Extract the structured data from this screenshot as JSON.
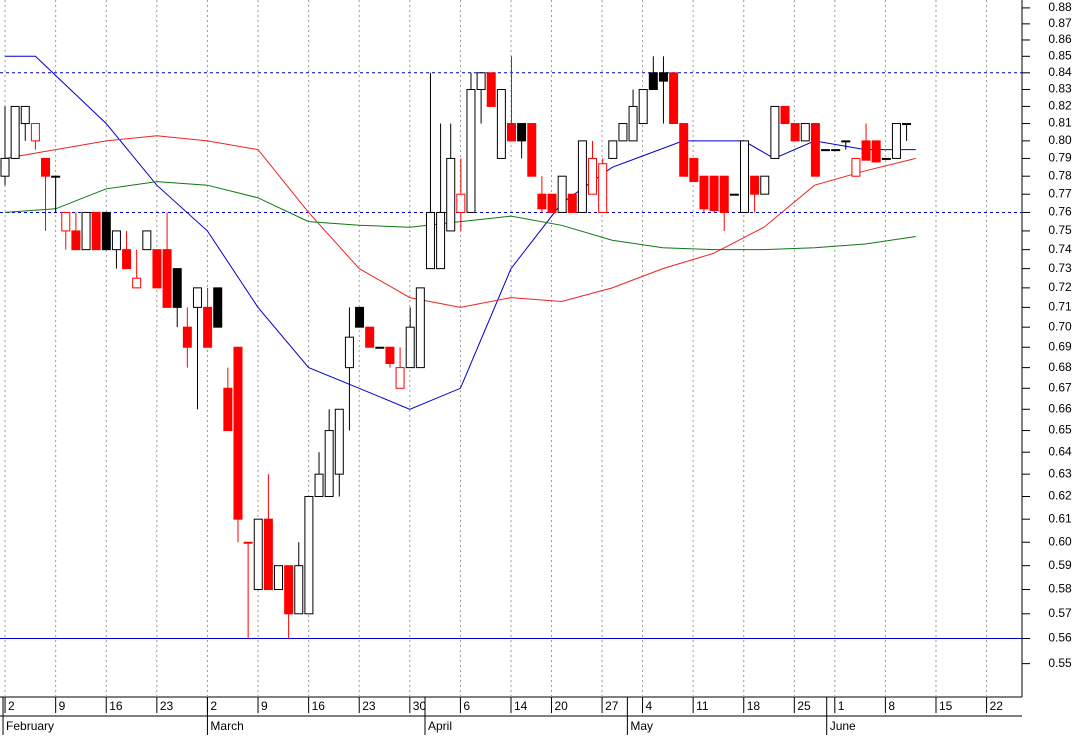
{
  "chart_data": {
    "type": "candlestick",
    "log": true,
    "ylim": [
      0.537,
      0.885
    ],
    "xlim": [
      -0.5,
      100.5
    ],
    "yticks": [
      0.55,
      0.56,
      0.57,
      0.58,
      0.59,
      {
        "value": 0.6,
        "label": "0.60"
      },
      0.61,
      0.62,
      0.63,
      0.64,
      0.65,
      0.66,
      0.67,
      0.68,
      0.69,
      {
        "value": 0.7,
        "label": "0.70"
      },
      0.71,
      0.72,
      0.73,
      0.74,
      0.75,
      0.76,
      0.77,
      0.78,
      0.79,
      {
        "value": 0.8,
        "label": "0.80"
      },
      0.81,
      0.82,
      0.83,
      0.84,
      0.85,
      0.86,
      0.87,
      0.88
    ],
    "xticks": [
      {
        "value": 0,
        "label": "2"
      },
      {
        "value": 5,
        "label": "9"
      },
      {
        "value": 10,
        "label": "16"
      },
      {
        "value": 15,
        "label": "23"
      },
      {
        "value": 20,
        "label": "2"
      },
      {
        "value": 25,
        "label": "9"
      },
      {
        "value": 30,
        "label": "16"
      },
      {
        "value": 35,
        "label": "23"
      },
      {
        "value": 40,
        "label": "30"
      },
      {
        "value": 45,
        "label": "6"
      },
      {
        "value": 50,
        "label": "14"
      },
      {
        "value": 54,
        "label": "20"
      },
      {
        "value": 59,
        "label": "27"
      },
      {
        "value": 63,
        "label": "4"
      },
      {
        "value": 68,
        "label": "11"
      },
      {
        "value": 73,
        "label": "18"
      },
      {
        "value": 78,
        "label": "25"
      },
      {
        "value": 82,
        "label": "1"
      },
      {
        "value": 87,
        "label": "8"
      },
      {
        "value": 92,
        "label": "15"
      },
      {
        "value": 97,
        "label": "22"
      }
    ],
    "xmonths": [
      {
        "value": -0.2,
        "label": "February"
      },
      {
        "value": 20,
        "label": "March"
      },
      {
        "value": 41.5,
        "label": "April"
      },
      {
        "value": 61.5,
        "label": "May"
      },
      {
        "value": 81.2,
        "label": "June"
      }
    ],
    "grid": true,
    "up_color": "#000000",
    "down_color": "#ff0000",
    "open": [
      0.78,
      0.79,
      0.81,
      0.8,
      0.79,
      0.78,
      0.75,
      0.75,
      0.74,
      0.76,
      0.76,
      0.74,
      0.74,
      0.72,
      0.74,
      0.74,
      0.74,
      0.73,
      0.7,
      0.71,
      0.71,
      0.72,
      0.67,
      0.69,
      0.6,
      0.58,
      0.61,
      0.58,
      0.59,
      0.57,
      0.57,
      0.62,
      0.62,
      0.63,
      0.68,
      0.71,
      0.7,
      0.69,
      0.69,
      0.67,
      0.68,
      0.68,
      0.73,
      0.73,
      0.75,
      0.76,
      0.76,
      0.83,
      0.84,
      0.79,
      0.81,
      0.81,
      0.81,
      0.77,
      0.77,
      0.76,
      0.77,
      0.76,
      0.77,
      0.76,
      0.79,
      0.8,
      0.8,
      0.81,
      0.84,
      0.84,
      0.84,
      0.81,
      0.79,
      0.78,
      0.78,
      0.78,
      0.77,
      0.76,
      0.78,
      0.77,
      0.79,
      0.82,
      0.81,
      0.8,
      0.81,
      0.795,
      0.795,
      0.8,
      0.78,
      0.8,
      0.8,
      0.79,
      0.79,
      0.81
    ],
    "high": [
      0.82,
      0.82,
      0.82,
      0.81,
      0.79,
      0.78,
      0.76,
      0.76,
      0.76,
      0.76,
      0.76,
      0.75,
      0.75,
      0.74,
      0.75,
      0.74,
      0.76,
      0.73,
      0.71,
      0.72,
      0.72,
      0.72,
      0.68,
      0.69,
      0.6,
      0.61,
      0.63,
      0.59,
      0.59,
      0.6,
      0.62,
      0.64,
      0.66,
      0.66,
      0.71,
      0.71,
      0.7,
      0.69,
      0.69,
      0.69,
      0.71,
      0.72,
      0.84,
      0.81,
      0.81,
      0.79,
      0.84,
      0.84,
      0.84,
      0.83,
      0.85,
      0.81,
      0.81,
      0.78,
      0.77,
      0.78,
      0.77,
      0.8,
      0.8,
      0.79,
      0.8,
      0.81,
      0.83,
      0.83,
      0.85,
      0.85,
      0.84,
      0.81,
      0.79,
      0.78,
      0.78,
      0.78,
      0.77,
      0.8,
      0.78,
      0.78,
      0.82,
      0.82,
      0.81,
      0.81,
      0.81,
      0.795,
      0.795,
      0.8,
      0.79,
      0.81,
      0.8,
      0.79,
      0.81,
      0.81
    ],
    "low": [
      0.775,
      0.79,
      0.8,
      0.795,
      0.75,
      0.76,
      0.74,
      0.74,
      0.74,
      0.74,
      0.74,
      0.73,
      0.73,
      0.72,
      0.74,
      0.72,
      0.71,
      0.7,
      0.68,
      0.66,
      0.69,
      0.7,
      0.65,
      0.6,
      0.56,
      0.58,
      0.58,
      0.58,
      0.56,
      0.57,
      0.57,
      0.62,
      0.62,
      0.62,
      0.65,
      0.7,
      0.69,
      0.69,
      0.68,
      0.67,
      0.68,
      0.68,
      0.73,
      0.73,
      0.75,
      0.75,
      0.76,
      0.81,
      0.82,
      0.79,
      0.8,
      0.79,
      0.78,
      0.76,
      0.76,
      0.76,
      0.76,
      0.76,
      0.77,
      0.76,
      0.79,
      0.8,
      0.8,
      0.81,
      0.83,
      0.81,
      0.81,
      0.78,
      0.777,
      0.76,
      0.76,
      0.75,
      0.77,
      0.76,
      0.76,
      0.77,
      0.79,
      0.81,
      0.8,
      0.8,
      0.78,
      0.795,
      0.795,
      0.795,
      0.78,
      0.79,
      0.788,
      0.79,
      0.79,
      0.8
    ],
    "close": [
      0.79,
      0.82,
      0.82,
      0.81,
      0.78,
      0.78,
      0.76,
      0.74,
      0.76,
      0.74,
      0.74,
      0.75,
      0.73,
      0.725,
      0.75,
      0.72,
      0.71,
      0.71,
      0.69,
      0.72,
      0.69,
      0.7,
      0.65,
      0.61,
      0.6,
      0.61,
      0.58,
      0.59,
      0.57,
      0.59,
      0.62,
      0.63,
      0.65,
      0.66,
      0.695,
      0.7,
      0.69,
      0.69,
      0.682,
      0.68,
      0.7,
      0.72,
      0.76,
      0.76,
      0.79,
      0.77,
      0.83,
      0.84,
      0.82,
      0.83,
      0.8,
      0.8,
      0.78,
      0.762,
      0.76,
      0.78,
      0.76,
      0.8,
      0.79,
      0.787,
      0.8,
      0.81,
      0.82,
      0.83,
      0.83,
      0.835,
      0.81,
      0.78,
      0.777,
      0.762,
      0.761,
      0.76,
      0.77,
      0.8,
      0.77,
      0.78,
      0.82,
      0.81,
      0.8,
      0.81,
      0.78,
      0.795,
      0.795,
      0.8,
      0.79,
      0.789,
      0.788,
      0.79,
      0.81,
      0.81
    ],
    "series": [
      {
        "color": "#0000cc",
        "x": [
          0,
          3,
          10,
          15,
          20,
          25,
          30,
          35,
          40,
          45,
          50,
          55,
          60,
          67,
          73,
          76,
          80,
          85,
          90
        ],
        "values": [
          0.85,
          0.85,
          0.81,
          0.775,
          0.75,
          0.71,
          0.68,
          0.67,
          0.66,
          0.67,
          0.73,
          0.765,
          0.785,
          0.8,
          0.8,
          0.79,
          0.8,
          0.795,
          0.795
        ]
      },
      {
        "color": "#ee2222",
        "x": [
          0,
          5,
          10,
          15,
          20,
          25,
          30,
          35,
          40,
          45,
          50,
          55,
          60,
          65,
          70,
          75,
          80,
          85,
          90
        ],
        "values": [
          0.79,
          0.795,
          0.8,
          0.803,
          0.8,
          0.795,
          0.76,
          0.73,
          0.715,
          0.71,
          0.715,
          0.713,
          0.72,
          0.73,
          0.738,
          0.752,
          0.775,
          0.783,
          0.79
        ]
      },
      {
        "color": "#117711",
        "x": [
          0,
          5,
          10,
          15,
          20,
          25,
          30,
          35,
          40,
          45,
          50,
          55,
          60,
          65,
          70,
          75,
          80,
          85,
          90
        ],
        "values": [
          0.76,
          0.762,
          0.773,
          0.777,
          0.775,
          0.768,
          0.755,
          0.753,
          0.752,
          0.755,
          0.758,
          0.753,
          0.745,
          0.741,
          0.74,
          0.74,
          0.741,
          0.743,
          0.747
        ]
      }
    ],
    "hlines": [
      {
        "value": 0.84,
        "color": "#0000cc",
        "style": "dashed"
      },
      {
        "value": 0.76,
        "color": "#0000cc",
        "style": "dashed"
      },
      {
        "value": 0.56,
        "color": "#0000cc",
        "style": "solid"
      }
    ]
  }
}
